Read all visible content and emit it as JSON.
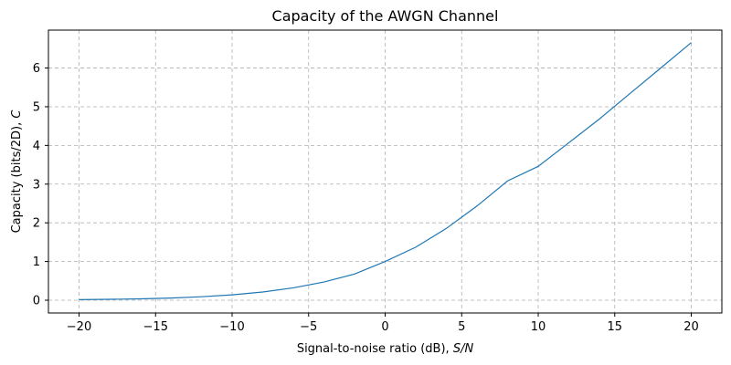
{
  "chart_data": {
    "type": "line",
    "title": "Capacity of the AWGN Channel",
    "xlabel_main": "Signal-to-noise ratio (dB), ",
    "xlabel_var": "S/N",
    "ylabel_main": "Capacity (bits/2D), ",
    "ylabel_var": "C",
    "xlim": [
      -22,
      22
    ],
    "ylim": [
      -0.33,
      6.98
    ],
    "xticks": [
      -20,
      -15,
      -10,
      -5,
      0,
      5,
      10,
      15,
      20
    ],
    "xtick_labels": [
      "−20",
      "−15",
      "−10",
      "−5",
      "0",
      "5",
      "10",
      "15",
      "20"
    ],
    "yticks": [
      0,
      1,
      2,
      3,
      4,
      5,
      6
    ],
    "ytick_labels": [
      "0",
      "1",
      "2",
      "3",
      "4",
      "5",
      "6"
    ],
    "grid": true,
    "series": [
      {
        "color": "#1f77b4",
        "x": [
          -20,
          -18,
          -16,
          -14,
          -12,
          -10,
          -8,
          -6,
          -4,
          -2,
          0,
          2,
          4,
          6,
          8,
          10,
          12,
          14,
          16,
          18,
          20
        ],
        "y": [
          0.014,
          0.023,
          0.036,
          0.057,
          0.09,
          0.138,
          0.212,
          0.32,
          0.471,
          0.676,
          1.0,
          1.371,
          1.856,
          2.434,
          3.083,
          3.459,
          4.069,
          4.684,
          5.342,
          5.998,
          6.658
        ]
      }
    ]
  }
}
